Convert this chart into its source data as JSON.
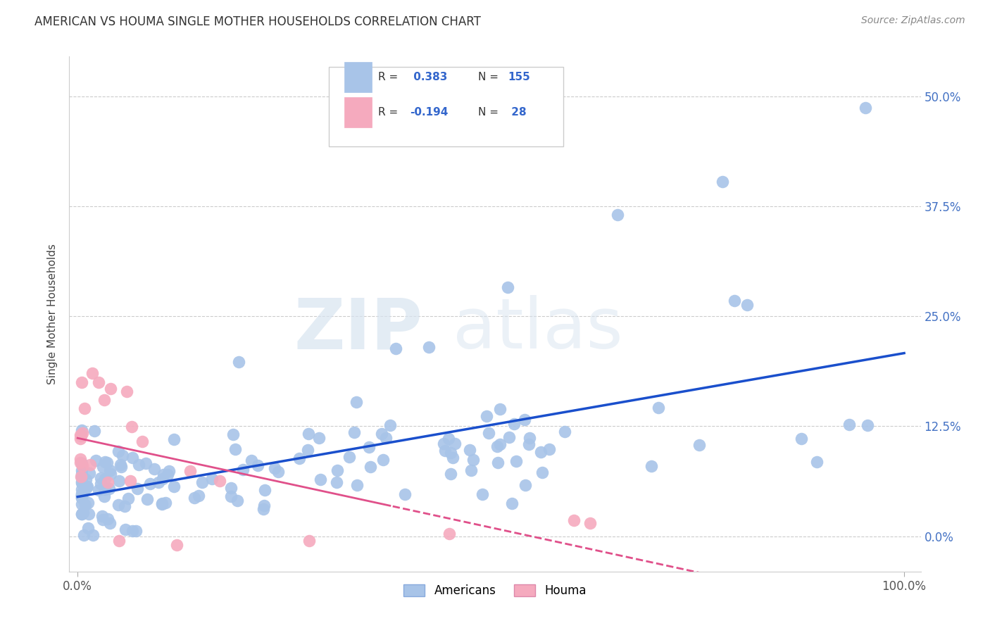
{
  "title": "AMERICAN VS HOUMA SINGLE MOTHER HOUSEHOLDS CORRELATION CHART",
  "source": "Source: ZipAtlas.com",
  "ylabel": "Single Mother Households",
  "xlabel": "",
  "legend_americans": "Americans",
  "legend_houma": "Houma",
  "r_americans": 0.383,
  "n_americans": 155,
  "r_houma": -0.194,
  "n_houma": 28,
  "americans_color": "#a8c4e8",
  "houma_color": "#f5aabe",
  "trend_american_color": "#1a4fcc",
  "trend_houma_color": "#e0508a",
  "background_color": "#ffffff",
  "watermark_zip": "ZIP",
  "watermark_atlas": "atlas",
  "xlim": [
    -0.01,
    1.02
  ],
  "ylim": [
    -0.04,
    0.545
  ],
  "yticks": [
    0.0,
    0.125,
    0.25,
    0.375,
    0.5
  ],
  "ytick_labels_right": [
    "0.0%",
    "12.5%",
    "25.0%",
    "37.5%",
    "50.0%"
  ],
  "xtick_vals": [
    0.0,
    1.0
  ],
  "xtick_labels": [
    "0.0%",
    "100.0%"
  ],
  "title_fontsize": 12,
  "source_fontsize": 10,
  "axis_label_fontsize": 11,
  "tick_fontsize": 12
}
